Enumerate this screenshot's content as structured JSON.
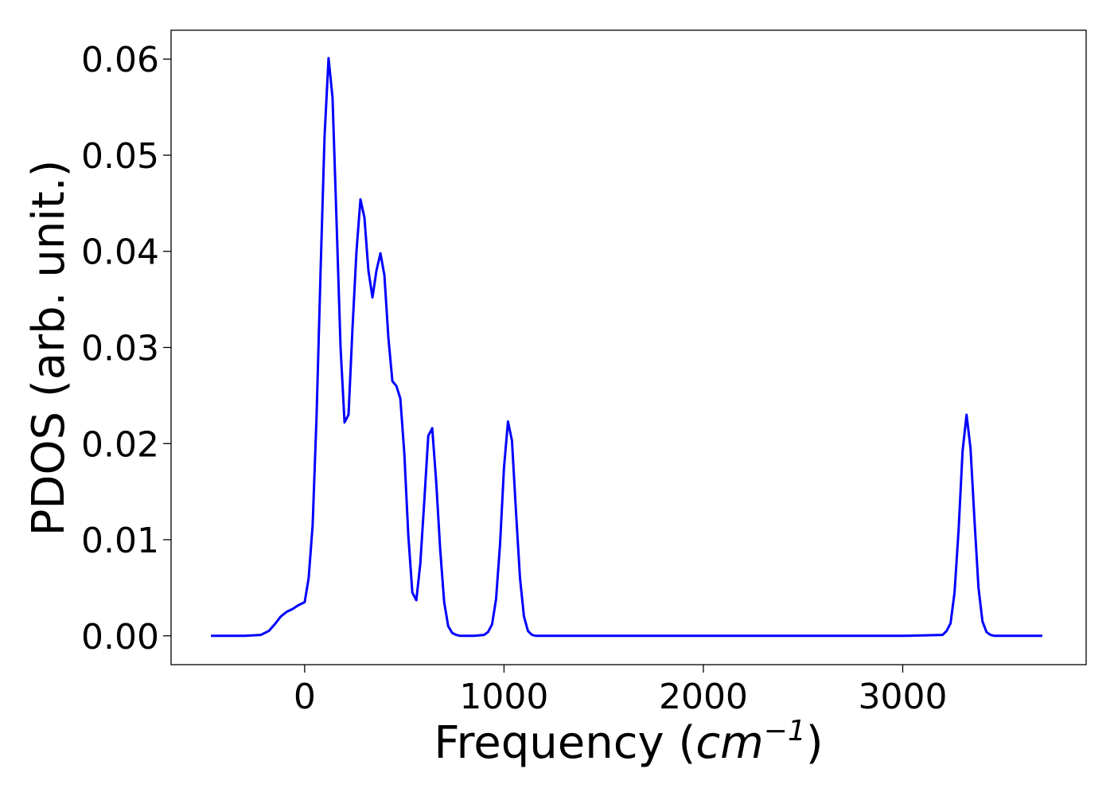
{
  "chart_data": {
    "type": "line",
    "xlabel_main": "Frequency (",
    "xlabel_unit": "cm",
    "xlabel_sup": "−1",
    "xlabel_close": ")",
    "ylabel": "PDOS (arb. unit.)",
    "xlim": [
      -670,
      3920
    ],
    "ylim": [
      -0.003,
      0.063
    ],
    "xticks": [
      0,
      1000,
      2000,
      3000
    ],
    "xtick_labels": [
      "0",
      "1000",
      "2000",
      "3000"
    ],
    "yticks": [
      0.0,
      0.01,
      0.02,
      0.03,
      0.04,
      0.05,
      0.06
    ],
    "ytick_labels": [
      "0.00",
      "0.01",
      "0.02",
      "0.03",
      "0.04",
      "0.05",
      "0.06"
    ],
    "grid": false,
    "series": [
      {
        "color": "#0000ff",
        "x": [
          -470,
          -300,
          -220,
          -180,
          -150,
          -120,
          -90,
          -60,
          -30,
          0,
          20,
          40,
          60,
          80,
          100,
          120,
          140,
          160,
          180,
          200,
          220,
          240,
          260,
          280,
          300,
          320,
          340,
          360,
          380,
          400,
          420,
          440,
          460,
          480,
          500,
          520,
          540,
          560,
          580,
          600,
          620,
          640,
          660,
          680,
          700,
          720,
          740,
          760,
          780,
          800,
          850,
          900,
          920,
          940,
          960,
          980,
          1000,
          1020,
          1040,
          1060,
          1080,
          1100,
          1120,
          1140,
          1160,
          1180,
          1200,
          1300,
          2000,
          3000,
          3200,
          3220,
          3240,
          3260,
          3280,
          3300,
          3320,
          3340,
          3360,
          3380,
          3400,
          3420,
          3440,
          3460,
          3500,
          3700
        ],
        "y": [
          0.0,
          0.0,
          0.0001,
          0.0005,
          0.0012,
          0.002,
          0.0025,
          0.0028,
          0.0032,
          0.0035,
          0.006,
          0.0115,
          0.023,
          0.038,
          0.052,
          0.0601,
          0.056,
          0.043,
          0.03,
          0.0222,
          0.023,
          0.032,
          0.04,
          0.0454,
          0.0435,
          0.038,
          0.0352,
          0.038,
          0.0398,
          0.0375,
          0.031,
          0.0265,
          0.026,
          0.0247,
          0.019,
          0.0105,
          0.0045,
          0.0037,
          0.0075,
          0.014,
          0.0208,
          0.0216,
          0.016,
          0.009,
          0.0035,
          0.001,
          0.0003,
          0.0001,
          0.0,
          0.0,
          0.0,
          0.0001,
          0.0004,
          0.0012,
          0.0038,
          0.0095,
          0.0175,
          0.0223,
          0.0203,
          0.013,
          0.006,
          0.002,
          0.0005,
          0.0001,
          0.0,
          0.0,
          0.0,
          0.0,
          0.0,
          0.0,
          0.0001,
          0.0005,
          0.0013,
          0.0045,
          0.011,
          0.0192,
          0.023,
          0.0195,
          0.012,
          0.005,
          0.0015,
          0.0004,
          0.0001,
          0.0,
          0.0,
          0.0
        ]
      }
    ]
  }
}
